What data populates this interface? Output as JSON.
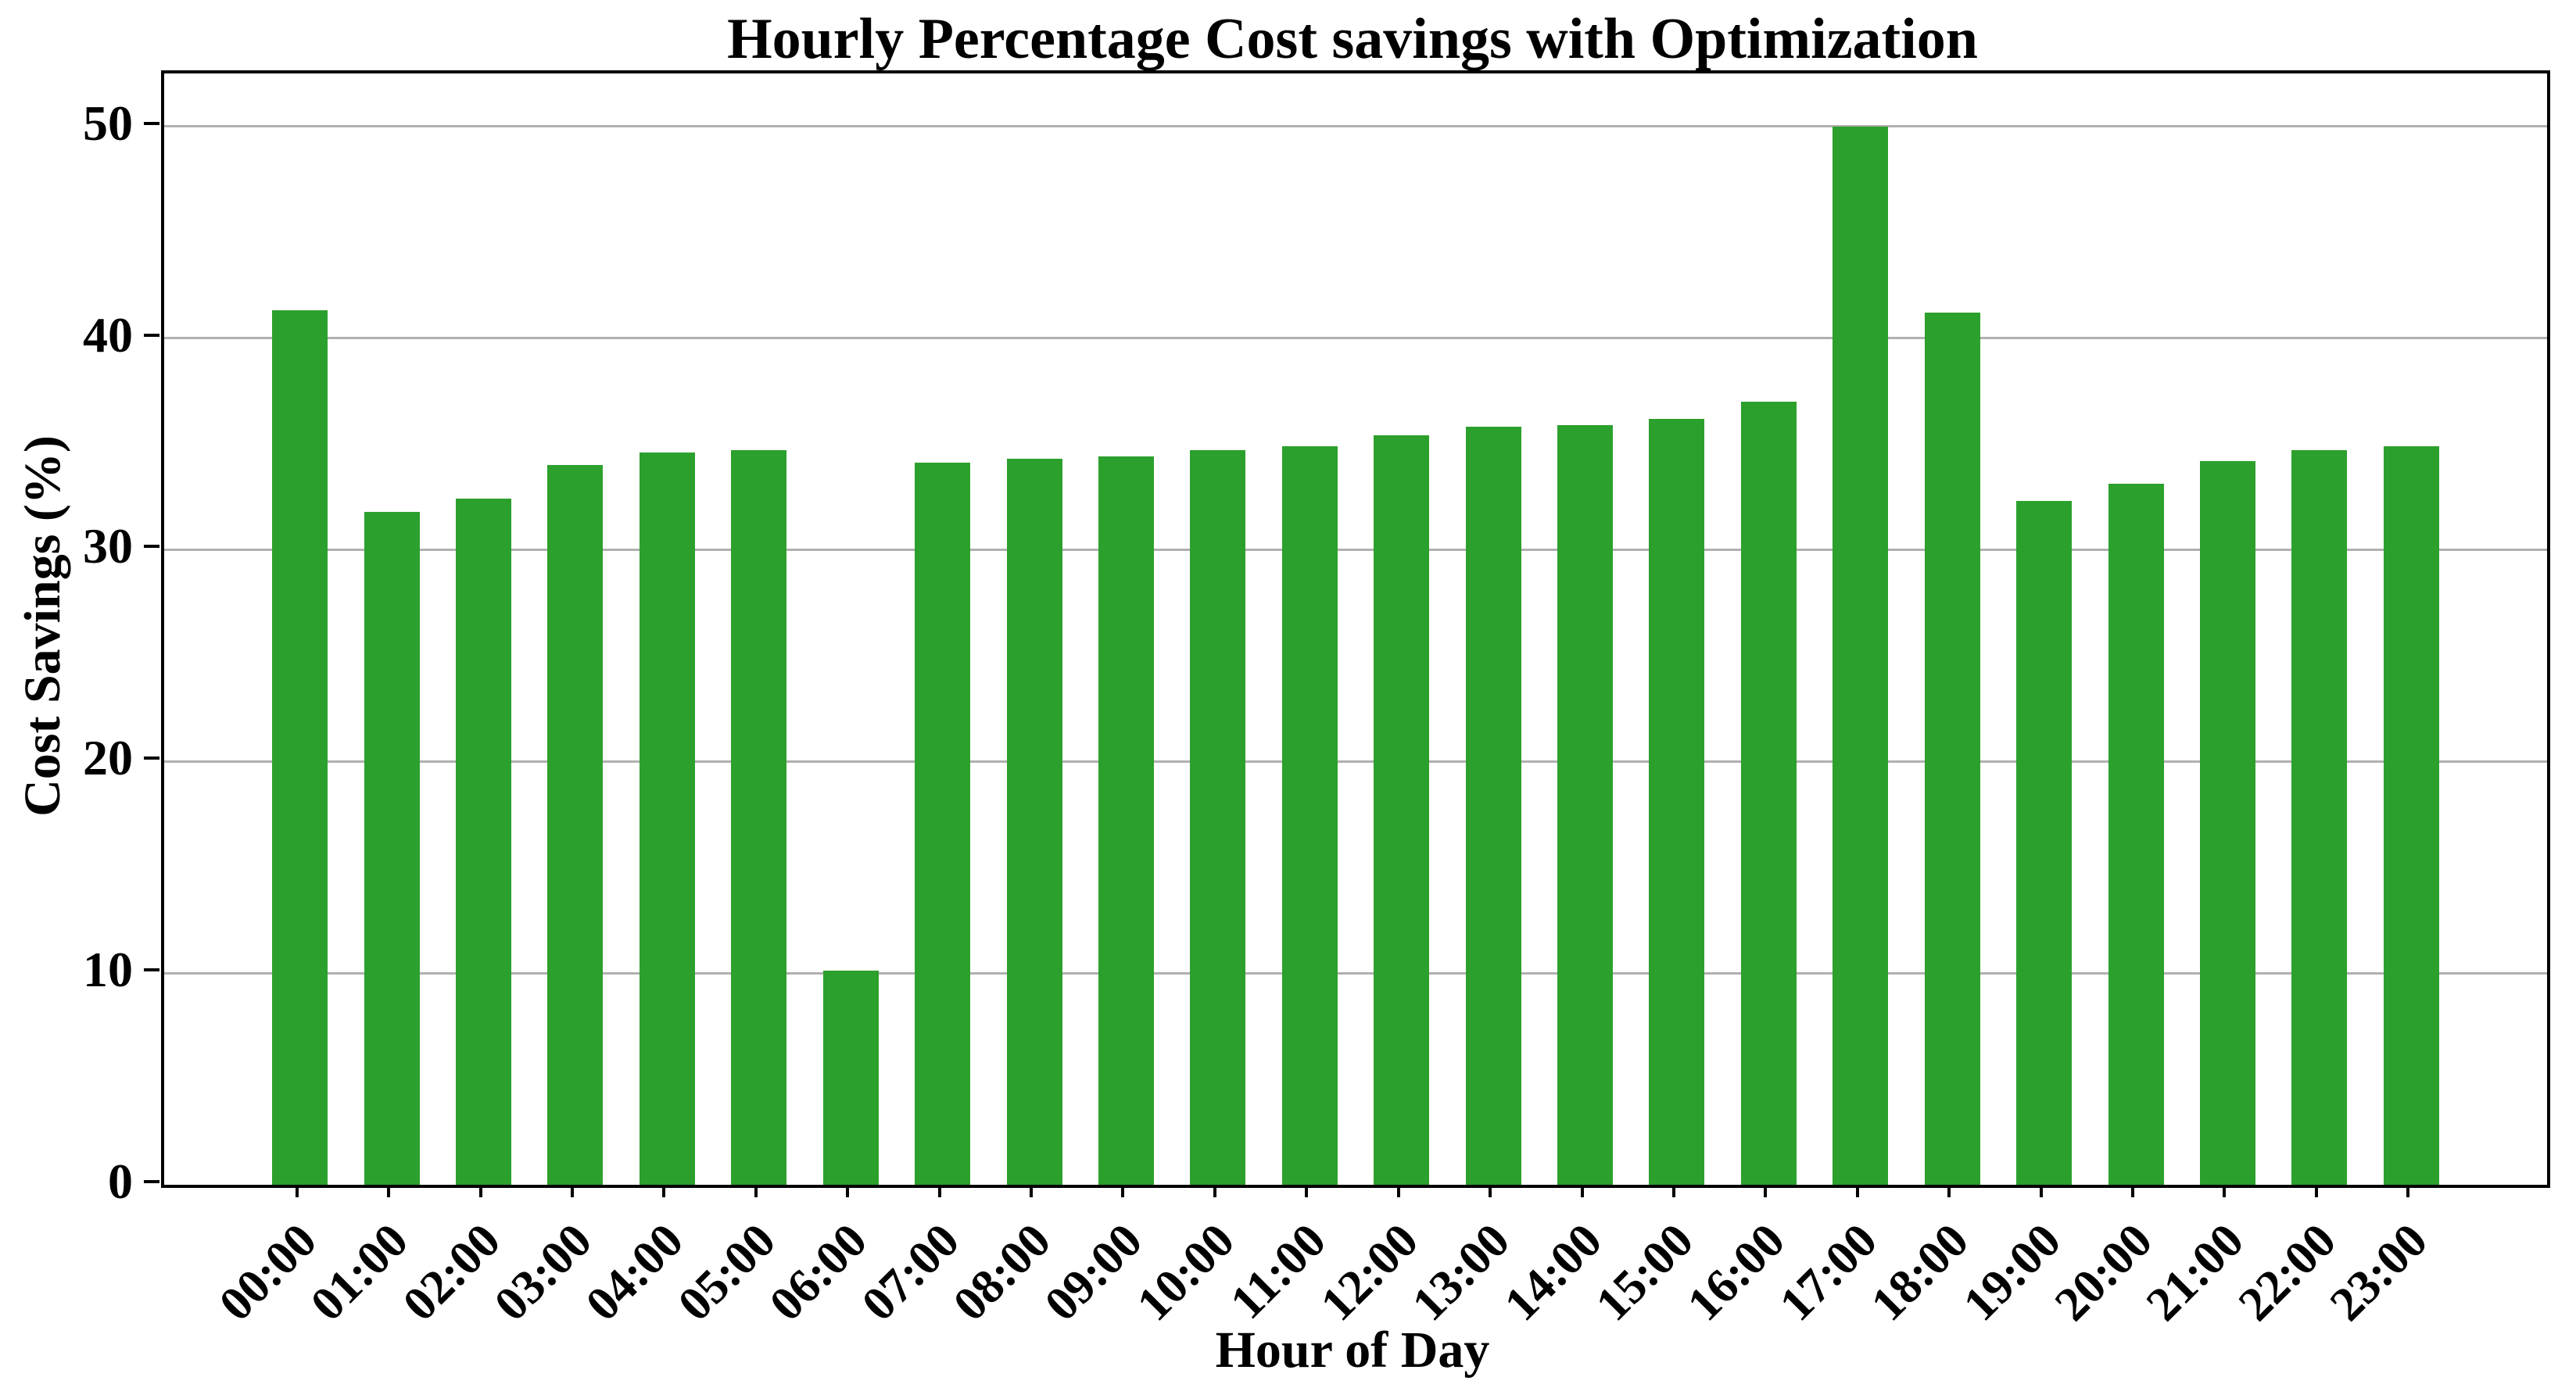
{
  "figure": {
    "background": "#ffffff"
  },
  "chart_data": {
    "type": "bar",
    "title": "Hourly Percentage Cost savings with Optimization",
    "xlabel": "Hour of Day",
    "ylabel": "Cost Savings (%)",
    "categories": [
      "00:00",
      "01:00",
      "02:00",
      "03:00",
      "04:00",
      "05:00",
      "06:00",
      "07:00",
      "08:00",
      "09:00",
      "10:00",
      "11:00",
      "12:00",
      "13:00",
      "14:00",
      "15:00",
      "16:00",
      "17:00",
      "18:00",
      "19:00",
      "20:00",
      "21:00",
      "22:00",
      "23:00"
    ],
    "values": [
      41.3,
      31.8,
      32.4,
      34.0,
      34.6,
      34.7,
      10.1,
      34.1,
      34.3,
      34.4,
      34.7,
      34.9,
      35.4,
      35.8,
      35.9,
      36.2,
      37.0,
      50.0,
      41.2,
      32.3,
      33.1,
      34.2,
      34.7,
      34.9
    ],
    "ylim": [
      0,
      52.5
    ],
    "yticks": [
      0,
      10,
      20,
      30,
      40,
      50
    ],
    "bar_color": "#2ca02c",
    "grid": true,
    "grid_color": "#b0b0b0",
    "grid_below_bars": true,
    "legend": "none",
    "x_tick_rotation_deg": 45
  }
}
